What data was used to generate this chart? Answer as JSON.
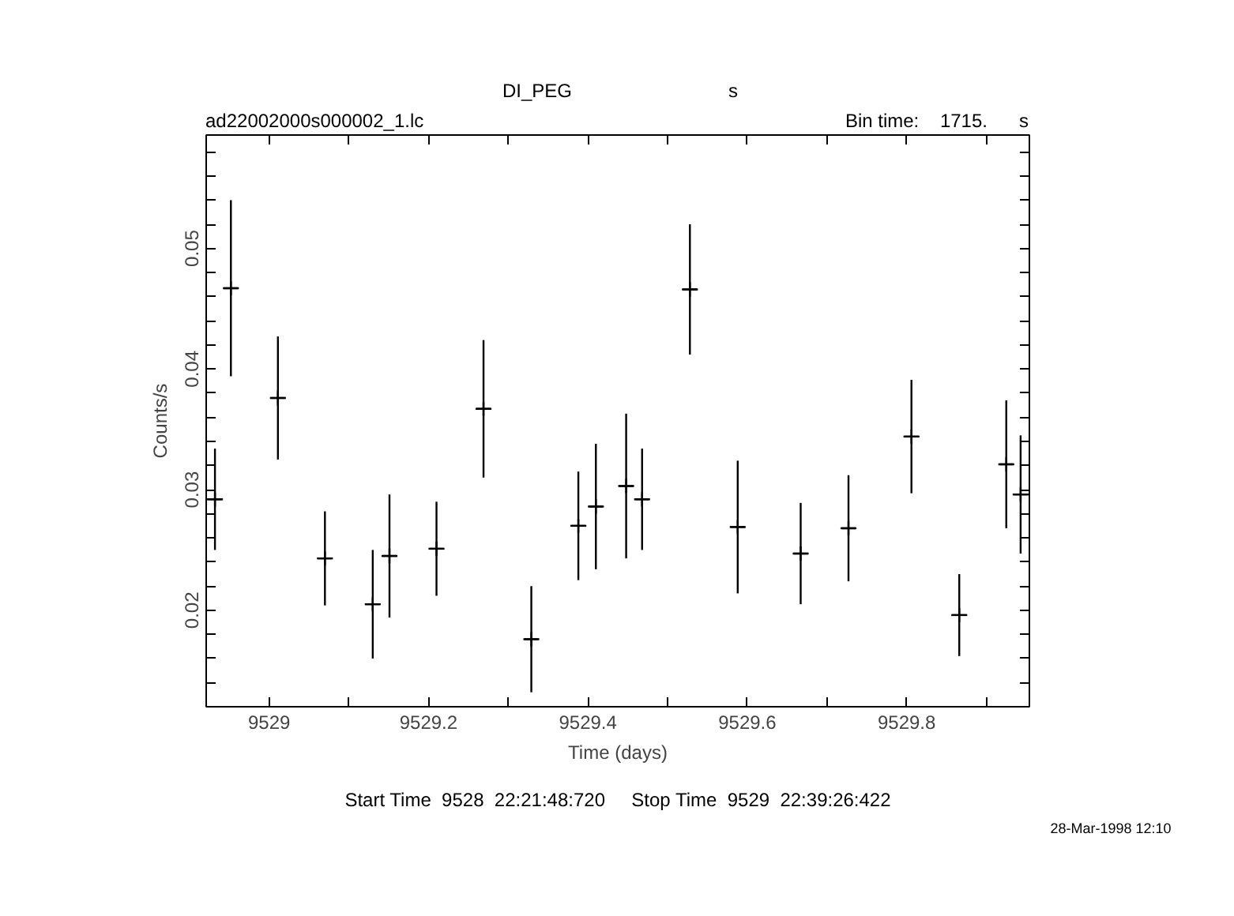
{
  "chart_data": {
    "type": "scatter",
    "title": "DI_PEG",
    "xlabel": "Time (days)",
    "ylabel": "Counts/s",
    "annotations": [
      "s",
      "ad22002000s000002_1.lc",
      "Bin time:    1715.      s",
      "Start Time  9528  22:21:48:720     Stop Time  9529  22:39:26:422",
      "28-Mar-1998 12:10"
    ],
    "x": [
      9528.932,
      9528.952,
      9529.011,
      9529.07,
      9529.13,
      9529.151,
      9529.21,
      9529.269,
      9529.329,
      9529.388,
      9529.41,
      9529.448,
      9529.468,
      9529.528,
      9529.588,
      9529.667,
      9529.727,
      9529.806,
      9529.866,
      9529.925,
      9529.943
    ],
    "values": [
      0.0292,
      0.0467,
      0.0376,
      0.0243,
      0.0205,
      0.0245,
      0.0251,
      0.0367,
      0.0176,
      0.027,
      0.0286,
      0.0303,
      0.0292,
      0.0466,
      0.0269,
      0.0247,
      0.0268,
      0.0344,
      0.0196,
      0.0321,
      0.0296
    ],
    "errors": [
      0.0042,
      0.0073,
      0.0051,
      0.0039,
      0.0045,
      0.0051,
      0.0039,
      0.0057,
      0.0044,
      0.0045,
      0.0052,
      0.006,
      0.0042,
      0.0054,
      0.0055,
      0.0042,
      0.0044,
      0.0047,
      0.0034,
      0.0053,
      0.0049
    ],
    "xerrors": [
      0.01,
      0.01,
      0.01,
      0.01,
      0.01,
      0.01,
      0.01,
      0.01,
      0.01,
      0.01,
      0.01,
      0.01,
      0.01,
      0.01,
      0.01,
      0.01,
      0.01,
      0.01,
      0.01,
      0.01,
      0.01
    ],
    "color": "#000000",
    "marker": "cross",
    "grid": false,
    "xlim": [
      9528.921,
      9529.954
    ],
    "xticks": [
      {
        "value": 9529,
        "label": "9529"
      },
      {
        "value": 9529.1,
        "label": null
      },
      {
        "value": 9529.2,
        "label": "9529.2"
      },
      {
        "value": 9529.3,
        "label": null
      },
      {
        "value": 9529.4,
        "label": "9529.4"
      },
      {
        "value": 9529.5,
        "label": null
      },
      {
        "value": 9529.6,
        "label": "9529.6"
      },
      {
        "value": 9529.7,
        "label": null
      },
      {
        "value": 9529.8,
        "label": "9529.8"
      },
      {
        "value": 9529.9,
        "label": null
      }
    ],
    "ylim": [
      0.012,
      0.0594
    ],
    "yticks": [
      {
        "value": 0.014,
        "label": null
      },
      {
        "value": 0.016,
        "label": null
      },
      {
        "value": 0.018,
        "label": null
      },
      {
        "value": 0.02,
        "label": "0.02"
      },
      {
        "value": 0.022,
        "label": null
      },
      {
        "value": 0.024,
        "label": null
      },
      {
        "value": 0.026,
        "label": null
      },
      {
        "value": 0.028,
        "label": null
      },
      {
        "value": 0.03,
        "label": "0.03"
      },
      {
        "value": 0.032,
        "label": null
      },
      {
        "value": 0.034,
        "label": null
      },
      {
        "value": 0.036,
        "label": null
      },
      {
        "value": 0.038,
        "label": null
      },
      {
        "value": 0.04,
        "label": "0.04"
      },
      {
        "value": 0.042,
        "label": null
      },
      {
        "value": 0.044,
        "label": null
      },
      {
        "value": 0.046,
        "label": null
      },
      {
        "value": 0.048,
        "label": null
      },
      {
        "value": 0.05,
        "label": "0.05"
      },
      {
        "value": 0.052,
        "label": null
      },
      {
        "value": 0.054,
        "label": null
      },
      {
        "value": 0.056,
        "label": null
      },
      {
        "value": 0.058,
        "label": null
      }
    ]
  }
}
